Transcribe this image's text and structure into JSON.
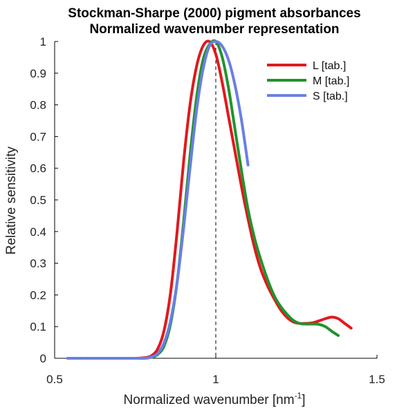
{
  "chart_data": {
    "type": "line",
    "title": "Stockman-Sharpe (2000) pigment absorbances",
    "subtitle": "Normalized wavenumber representation",
    "xlabel": "Normalized wavenumber [nm",
    "xlabel_sup": "-1",
    "xlabel_end": "]",
    "ylabel": "Relative sensitivity",
    "xlim": [
      0.5,
      1.5
    ],
    "ylim": [
      0,
      1
    ],
    "xticks": [
      0.5,
      1,
      1.5
    ],
    "xtick_labels": [
      "0.5",
      "1",
      "1.5"
    ],
    "yticks": [
      0,
      0.1,
      0.2,
      0.3,
      0.4,
      0.5,
      0.6,
      0.7,
      0.8,
      0.9,
      1
    ],
    "ytick_labels": [
      "0",
      "0.1",
      "0.2",
      "0.3",
      "0.4",
      "0.5",
      "0.6",
      "0.7",
      "0.8",
      "0.9",
      "1"
    ],
    "grid": false,
    "legend_position": "top-right",
    "reference_line": {
      "x": 1,
      "style": "dashed",
      "color": "#000000"
    },
    "series": [
      {
        "name": "L [tab.]",
        "color": "#e0191c",
        "x": [
          0.7,
          0.75,
          0.78,
          0.8,
          0.82,
          0.84,
          0.86,
          0.88,
          0.9,
          0.92,
          0.94,
          0.96,
          0.98,
          1.0,
          1.02,
          1.04,
          1.06,
          1.08,
          1.1,
          1.12,
          1.14,
          1.16,
          1.18,
          1.2,
          1.22,
          1.24,
          1.26,
          1.28,
          1.3,
          1.32,
          1.34,
          1.36,
          1.38,
          1.4,
          1.42
        ],
        "y": [
          0.0,
          0.0,
          0.002,
          0.008,
          0.03,
          0.09,
          0.21,
          0.4,
          0.62,
          0.8,
          0.92,
          0.985,
          1.0,
          0.96,
          0.87,
          0.76,
          0.65,
          0.54,
          0.44,
          0.35,
          0.28,
          0.23,
          0.19,
          0.155,
          0.13,
          0.115,
          0.11,
          0.11,
          0.112,
          0.118,
          0.125,
          0.13,
          0.125,
          0.11,
          0.095
        ]
      },
      {
        "name": "M [tab.]",
        "color": "#23922e",
        "x": [
          0.7,
          0.75,
          0.78,
          0.8,
          0.82,
          0.84,
          0.86,
          0.88,
          0.9,
          0.92,
          0.94,
          0.96,
          0.98,
          1.0,
          1.02,
          1.04,
          1.06,
          1.08,
          1.1,
          1.12,
          1.14,
          1.16,
          1.18,
          1.2,
          1.22,
          1.24,
          1.26,
          1.28,
          1.3,
          1.32,
          1.34,
          1.36,
          1.38
        ],
        "y": [
          0.0,
          0.0,
          0.0,
          0.003,
          0.012,
          0.04,
          0.11,
          0.24,
          0.43,
          0.64,
          0.82,
          0.94,
          0.99,
          1.0,
          0.95,
          0.85,
          0.72,
          0.59,
          0.47,
          0.38,
          0.31,
          0.25,
          0.2,
          0.165,
          0.14,
          0.12,
          0.11,
          0.108,
          0.108,
          0.107,
          0.1,
          0.085,
          0.072
        ]
      },
      {
        "name": "S [tab.]",
        "color": "#6a7fe3",
        "x": [
          0.54,
          0.6,
          0.65,
          0.7,
          0.75,
          0.78,
          0.8,
          0.82,
          0.84,
          0.86,
          0.88,
          0.9,
          0.92,
          0.94,
          0.96,
          0.98,
          1.0,
          1.02,
          1.04,
          1.06,
          1.08,
          1.1
        ],
        "y": [
          0.0,
          0.0,
          0.0,
          0.0,
          0.0,
          0.0,
          0.004,
          0.015,
          0.05,
          0.12,
          0.24,
          0.41,
          0.6,
          0.78,
          0.91,
          0.985,
          1.0,
          0.985,
          0.94,
          0.86,
          0.75,
          0.61
        ]
      }
    ]
  }
}
